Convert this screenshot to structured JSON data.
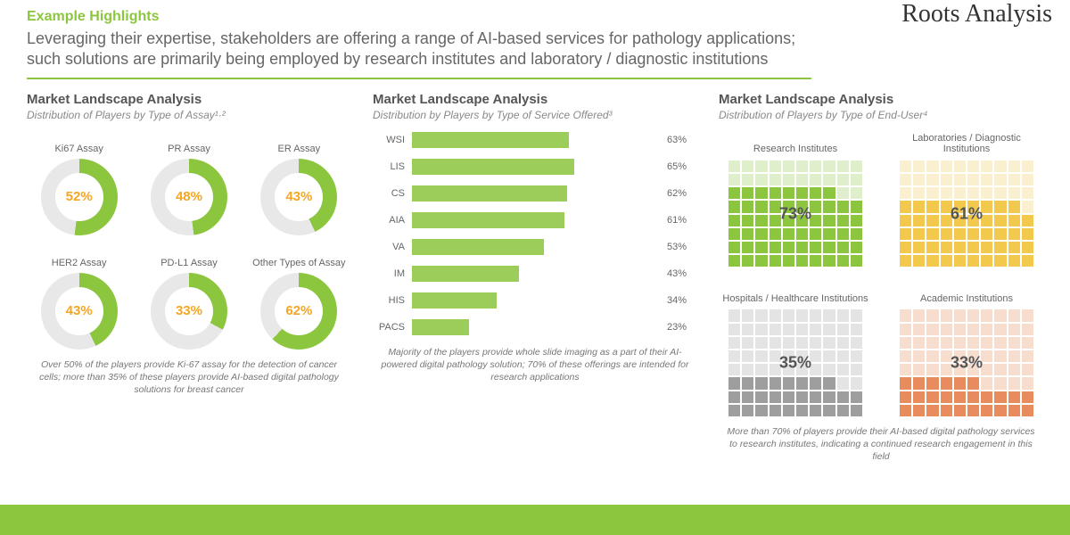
{
  "brand": "Roots Analysis",
  "section_label": "Example Highlights",
  "headline": "Leveraging their expertise, stakeholders are offering a range of AI-based services for pathology applications; such solutions are primarily being employed by research institutes and laboratory / diagnostic institutions",
  "colors": {
    "accent": "#8cc63f",
    "accent_dark": "#6aa32a",
    "empty": "#e8e8e8",
    "text_muted": "#777777"
  },
  "panel1": {
    "title": "Market Landscape Analysis",
    "subtitle": "Distribution of Players by Type of Assay¹·²",
    "donut_colors": {
      "fill": "#8cc63f",
      "empty": "#e8e8e8",
      "pct_text": "#f5a623"
    },
    "items": [
      {
        "label": "Ki67 Assay",
        "pct": 52
      },
      {
        "label": "PR Assay",
        "pct": 48
      },
      {
        "label": "ER Assay",
        "pct": 43
      },
      {
        "label": "HER2 Assay",
        "pct": 43
      },
      {
        "label": "PD-L1 Assay",
        "pct": 33
      },
      {
        "label": "Other Types of Assay",
        "pct": 62
      }
    ],
    "caption": "Over 50% of the players provide Ki-67 assay for the detection of cancer cells; more than 35% of these players provide AI-based digital pathology solutions for breast cancer"
  },
  "panel2": {
    "title": "Market Landscape Analysis",
    "subtitle": "Distribution by Players by Type of Service Offered³",
    "bar_color": "#9ccc5a",
    "xmax": 100,
    "items": [
      {
        "label": "WSI",
        "pct": 63
      },
      {
        "label": "LIS",
        "pct": 65
      },
      {
        "label": "CS",
        "pct": 62
      },
      {
        "label": "AIA",
        "pct": 61
      },
      {
        "label": "VA",
        "pct": 53
      },
      {
        "label": "IM",
        "pct": 43
      },
      {
        "label": "HIS",
        "pct": 34
      },
      {
        "label": "PACS",
        "pct": 23
      }
    ],
    "caption": "Majority of the players provide whole slide imaging as a part of their AI-powered digital pathology solution; 70% of these offerings are intended for research applications"
  },
  "panel3": {
    "title": "Market Landscape Analysis",
    "subtitle": "Distribution of Players by Type of End-User⁴",
    "grid": {
      "rows": 8,
      "cols": 10
    },
    "items": [
      {
        "label": "Research Institutes",
        "pct": 73,
        "fill": "#8cc63f",
        "empty": "#dfeecb"
      },
      {
        "label": "Laboratories / Diagnostic Institutions",
        "pct": 61,
        "fill": "#f2c94c",
        "empty": "#faf0cf"
      },
      {
        "label": "Hospitals / Healthcare Institutions",
        "pct": 35,
        "fill": "#9e9e9e",
        "empty": "#e4e4e4"
      },
      {
        "label": "Academic Institutions",
        "pct": 33,
        "fill": "#e88b5d",
        "empty": "#f6ddce"
      }
    ],
    "caption": "More than 70% of players provide their AI-based digital pathology services to research institutes, indicating a continued research engagement in this field"
  }
}
